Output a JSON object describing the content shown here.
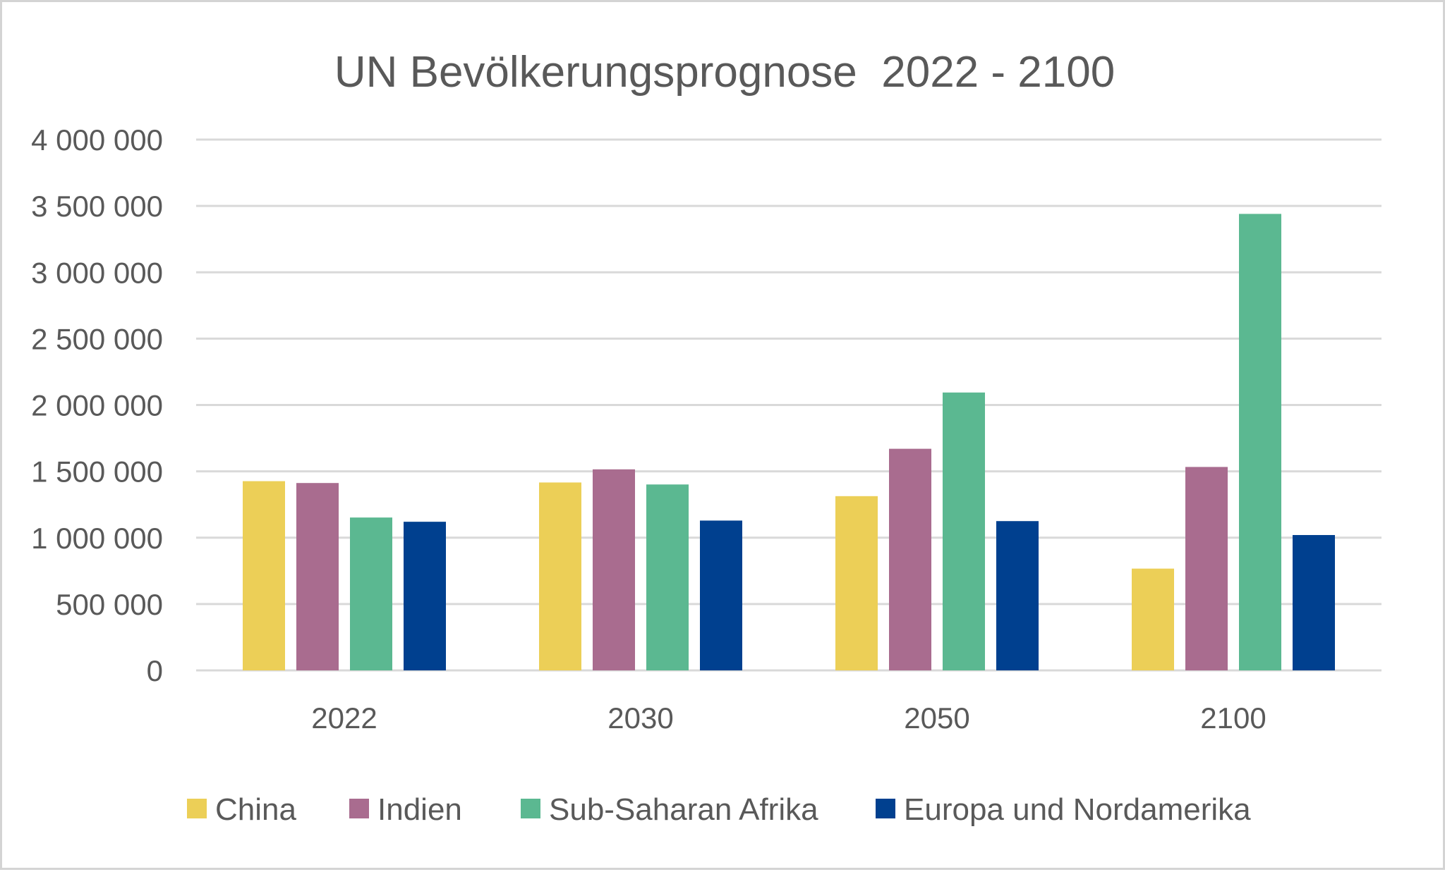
{
  "chart_data": {
    "type": "bar",
    "title": "UN Bevölkerungsprognose  2022 - 2100",
    "xlabel": "",
    "ylabel": "",
    "categories": [
      "2022",
      "2030",
      "2050",
      "2100"
    ],
    "ylim": [
      0,
      4000000
    ],
    "yticks": [
      {
        "value": 0,
        "label": "0"
      },
      {
        "value": 500000,
        "label": "500 000"
      },
      {
        "value": 1000000,
        "label": "1 000 000"
      },
      {
        "value": 1500000,
        "label": "1 500 000"
      },
      {
        "value": 2000000,
        "label": "2 000 000"
      },
      {
        "value": 2500000,
        "label": "2 500 000"
      },
      {
        "value": 3000000,
        "label": "3 000 000"
      },
      {
        "value": 3500000,
        "label": "3 500 000"
      },
      {
        "value": 4000000,
        "label": "4 000 000"
      }
    ],
    "grid": true,
    "legend_position": "bottom",
    "series": [
      {
        "name": "China",
        "color": "#ECCF57",
        "values": [
          1426000,
          1416000,
          1313000,
          767000
        ]
      },
      {
        "name": "Indien",
        "color": "#A96C8F",
        "values": [
          1412000,
          1515000,
          1670000,
          1533000
        ]
      },
      {
        "name": "Sub-Saharan Afrika",
        "color": "#5BB891",
        "values": [
          1152000,
          1401000,
          2094000,
          3440000
        ]
      },
      {
        "name": "Europa und Nordamerika",
        "color": "#00408F",
        "values": [
          1120000,
          1129000,
          1125000,
          1020000
        ]
      }
    ]
  }
}
